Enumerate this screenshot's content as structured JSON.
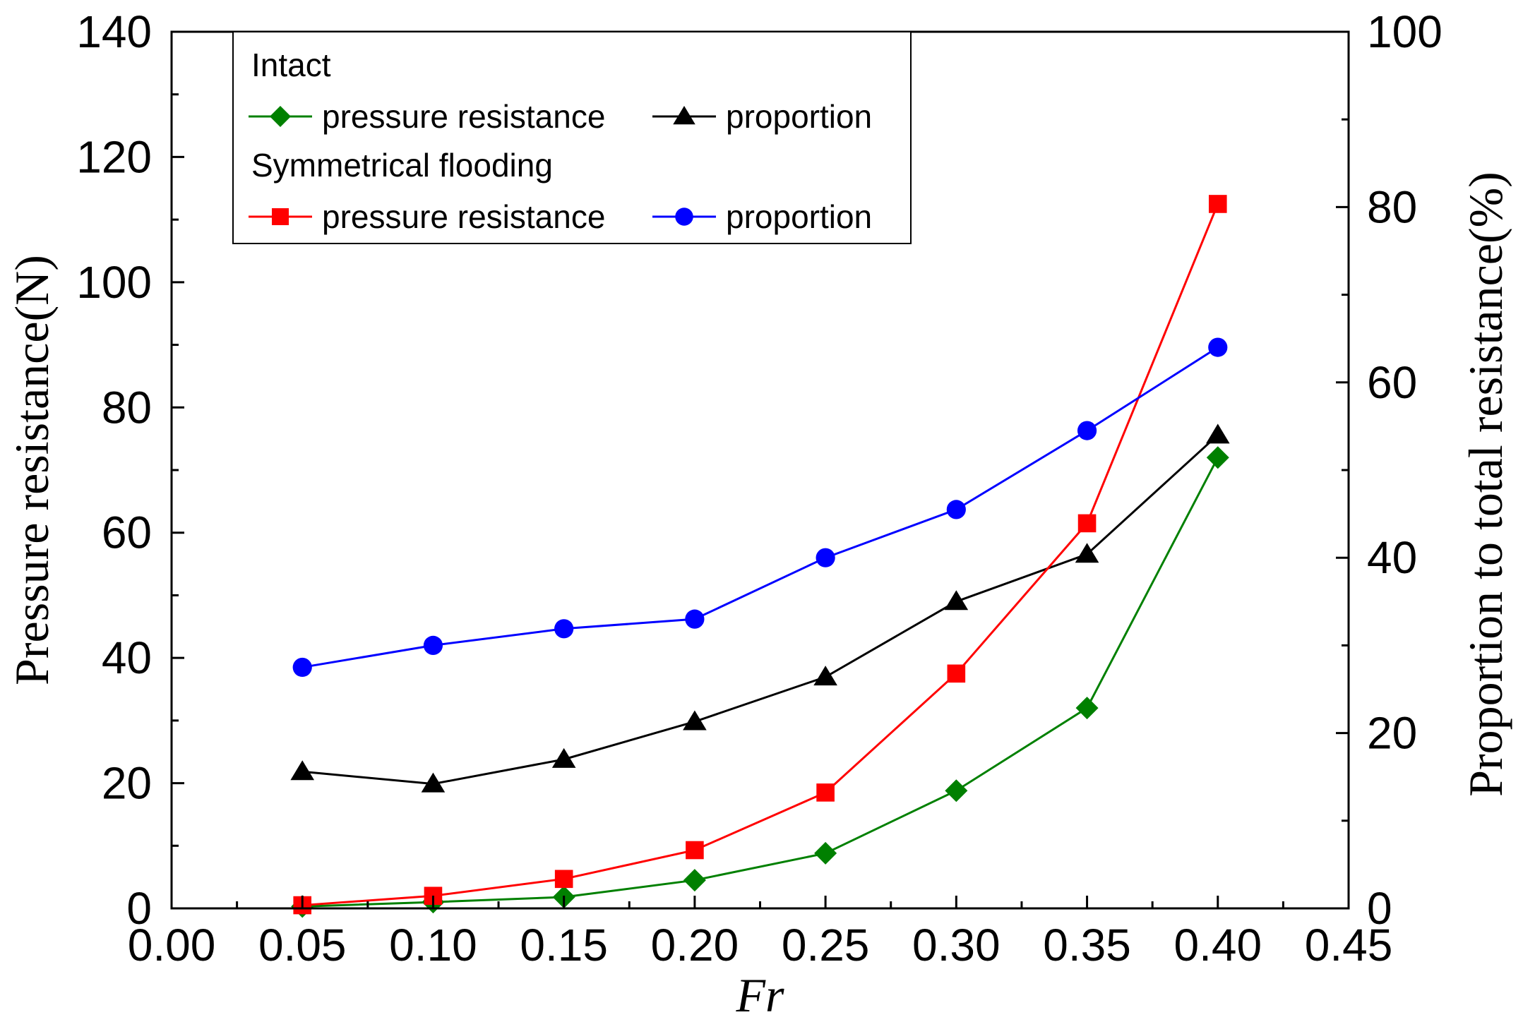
{
  "chart_data": {
    "type": "line",
    "title": "",
    "xlabel": "Fr",
    "ylabel_left": "Pressure resistance(N)",
    "ylabel_right": "Proportion to total resistance(%)",
    "xlim": [
      0.0,
      0.45
    ],
    "ylim_left": [
      0,
      140
    ],
    "ylim_right": [
      0,
      100
    ],
    "x_ticks": [
      "0.00",
      "0.05",
      "0.10",
      "0.15",
      "0.20",
      "0.25",
      "0.30",
      "0.35",
      "0.40",
      "0.45"
    ],
    "y_left_ticks": [
      "0",
      "20",
      "40",
      "60",
      "80",
      "100",
      "120",
      "140"
    ],
    "y_right_ticks": [
      "0",
      "20",
      "40",
      "60",
      "80",
      "100"
    ],
    "x": [
      0.05,
      0.1,
      0.15,
      0.2,
      0.25,
      0.3,
      0.35,
      0.4
    ],
    "legend_position": "top-left",
    "legend_groups": [
      {
        "title": "Intact"
      },
      {
        "title": "Symmetrical flooding"
      }
    ],
    "series": [
      {
        "name": "pressure resistance",
        "group": "Intact",
        "axis": "left",
        "color": "#008000",
        "marker": "diamond",
        "values": [
          0.3,
          1.0,
          1.8,
          4.5,
          8.8,
          18.8,
          32.0,
          72.0
        ]
      },
      {
        "name": "proportion",
        "group": "Intact",
        "axis": "right",
        "color": "#000000",
        "marker": "triangle",
        "values": [
          15.6,
          14.2,
          17.0,
          21.3,
          26.4,
          35.0,
          40.4,
          54.0
        ]
      },
      {
        "name": "pressure resistance",
        "group": "Symmetrical flooding",
        "axis": "left",
        "color": "#ff0000",
        "marker": "square",
        "values": [
          0.5,
          2.0,
          4.7,
          9.3,
          18.5,
          37.5,
          61.5,
          112.5
        ]
      },
      {
        "name": "proportion",
        "group": "Symmetrical flooding",
        "axis": "right",
        "color": "#0000ff",
        "marker": "circle",
        "values": [
          27.5,
          30.0,
          31.9,
          33.0,
          40.0,
          45.5,
          54.5,
          64.0
        ]
      }
    ]
  }
}
